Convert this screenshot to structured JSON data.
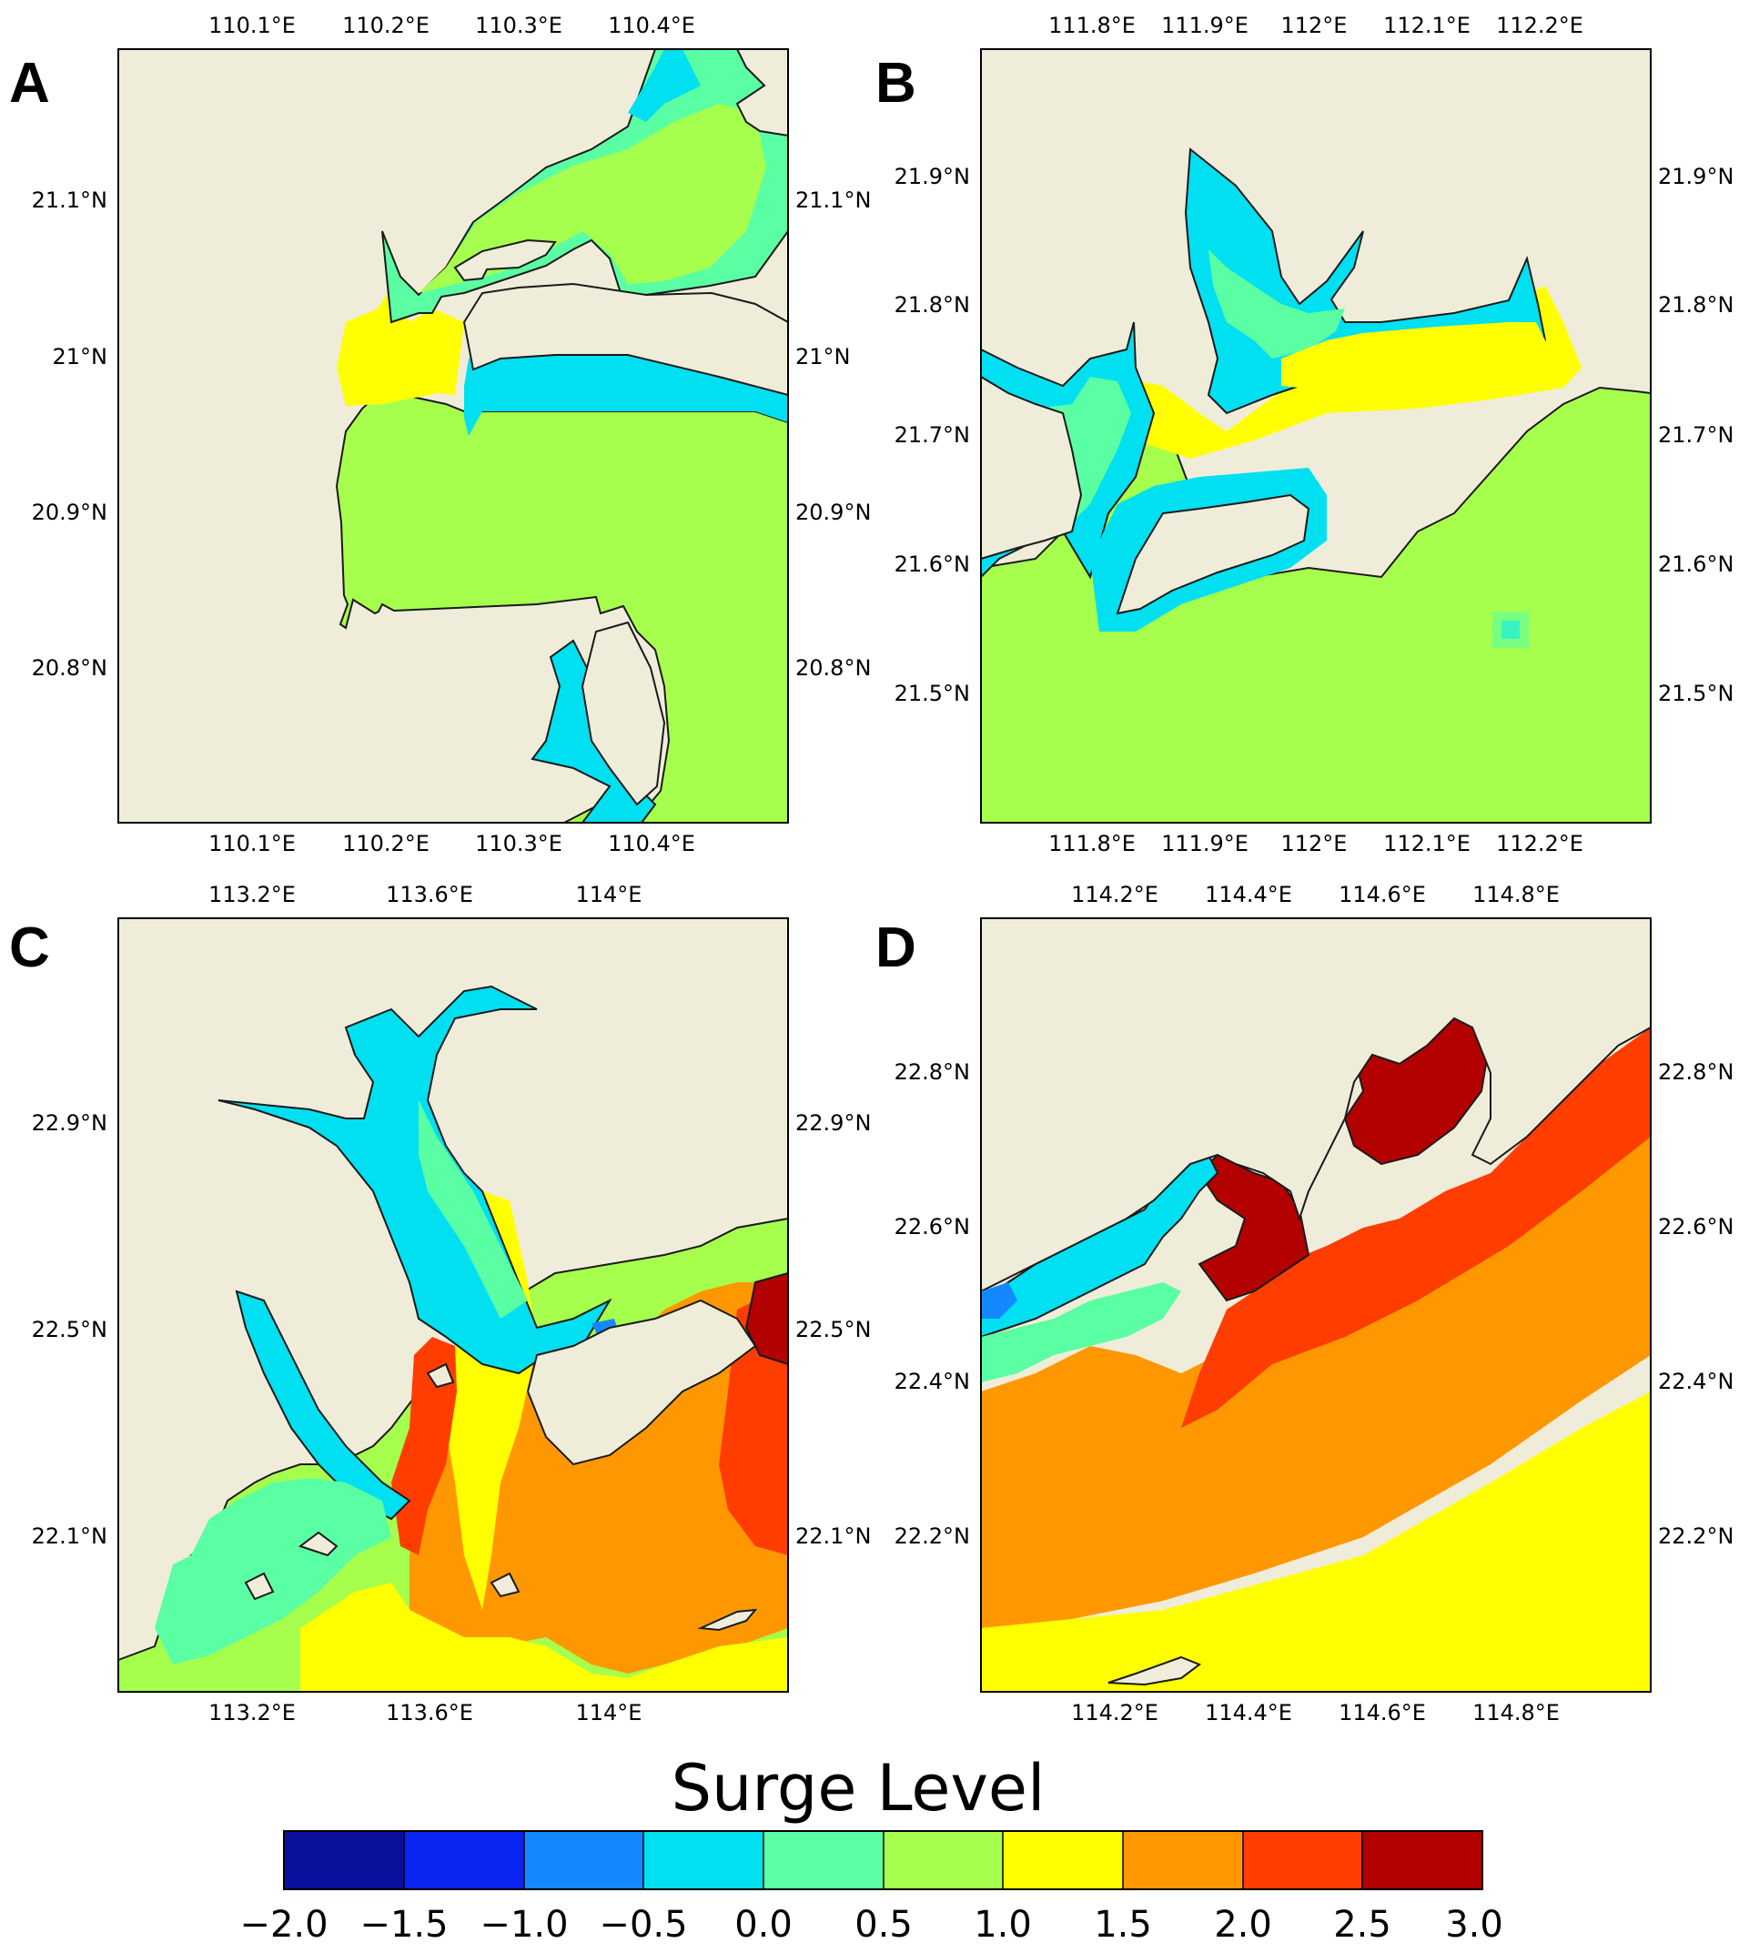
{
  "colors": {
    "land": "#efedda",
    "coast": "#1a1a1a",
    "levels": [
      "#0a0f9c",
      "#0a24f2",
      "#1489ff",
      "#00e0f0",
      "#5bffa3",
      "#a6ff4c",
      "#ffff00",
      "#ff9800",
      "#ff3d00",
      "#b30000"
    ]
  },
  "panels": [
    {
      "letter": "A",
      "top_ticks": [
        "110.1°E",
        "110.2°E",
        "110.3°E",
        "110.4°E"
      ],
      "bottom_ticks": [
        "110.1°E",
        "110.2°E",
        "110.3°E",
        "110.4°E"
      ],
      "left_ticks": [
        "21.1°N",
        "21°N",
        "20.9°N",
        "20.8°N"
      ],
      "right_ticks": [
        "21.1°N",
        "21°N",
        "20.9°N",
        "20.8°N"
      ]
    },
    {
      "letter": "B",
      "top_ticks": [
        "111.8°E",
        "111.9°E",
        "112°E",
        "112.1°E",
        "112.2°E"
      ],
      "bottom_ticks": [
        "111.8°E",
        "111.9°E",
        "112°E",
        "112.1°E",
        "112.2°E"
      ],
      "left_ticks": [
        "21.9°N",
        "21.8°N",
        "21.7°N",
        "21.6°N",
        "21.5°N"
      ],
      "right_ticks": [
        "21.9°N",
        "21.8°N",
        "21.7°N",
        "21.6°N",
        "21.5°N"
      ]
    },
    {
      "letter": "C",
      "top_ticks": [
        "113.2°E",
        "113.6°E",
        "114°E"
      ],
      "bottom_ticks": [
        "113.2°E",
        "113.6°E",
        "114°E"
      ],
      "left_ticks": [
        "22.9°N",
        "22.5°N",
        "22.1°N"
      ],
      "right_ticks": [
        "22.9°N",
        "22.5°N",
        "22.1°N"
      ]
    },
    {
      "letter": "D",
      "top_ticks": [
        "114.2°E",
        "114.4°E",
        "114.6°E",
        "114.8°E"
      ],
      "bottom_ticks": [
        "114.2°E",
        "114.4°E",
        "114.6°E",
        "114.8°E"
      ],
      "left_ticks": [
        "22.8°N",
        "22.6°N",
        "22.4°N",
        "22.2°N"
      ],
      "right_ticks": [
        "22.8°N",
        "22.6°N",
        "22.4°N",
        "22.2°N"
      ]
    }
  ],
  "colorbar": {
    "title": "Surge Level",
    "labels": [
      "−2.0",
      "−1.5",
      "−1.0",
      "−0.5",
      "0.0",
      "0.5",
      "1.0",
      "1.5",
      "2.0",
      "2.5",
      "3.0"
    ]
  }
}
